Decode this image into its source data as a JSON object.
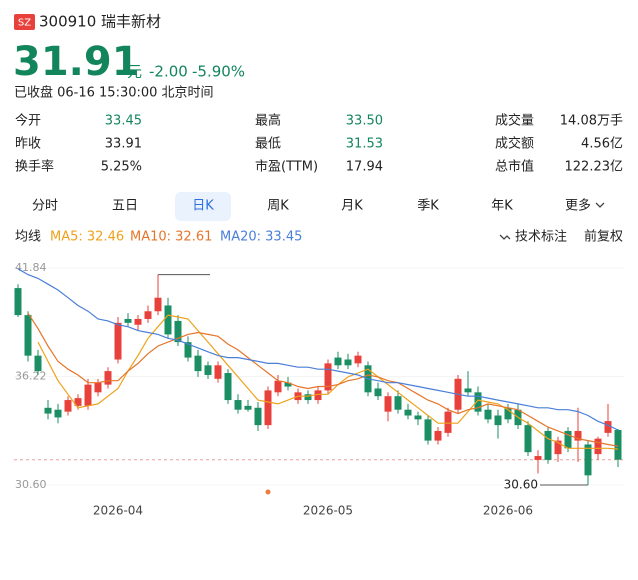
{
  "header": {
    "badge": "SZ",
    "name": "300910 瑞丰新材",
    "price": "31.91",
    "unit": "元",
    "change": "-2.00",
    "change_pct": "-5.90%",
    "status": "已收盘 06-16 15:30:00 北京时间"
  },
  "stats": [
    {
      "label": "今开",
      "value": "33.45",
      "color": "#13855c"
    },
    {
      "label": "最高",
      "value": "33.50",
      "color": "#13855c"
    },
    {
      "label": "成交量",
      "value": "14.08万手",
      "color": "#222222"
    },
    {
      "label": "昨收",
      "value": "33.91",
      "color": "#222222"
    },
    {
      "label": "最低",
      "value": "31.53",
      "color": "#13855c"
    },
    {
      "label": "成交额",
      "value": "4.56亿",
      "color": "#222222"
    },
    {
      "label": "换手率",
      "value": "5.25%",
      "color": "#222222"
    },
    {
      "label": "市盈(TTM)",
      "value": "17.94",
      "color": "#222222"
    },
    {
      "label": "总市值",
      "value": "122.23亿",
      "color": "#222222"
    }
  ],
  "tabs": [
    "分时",
    "五日",
    "日K",
    "周K",
    "月K",
    "季K",
    "年K",
    "更多"
  ],
  "selected_tab": 2,
  "toolbar": {
    "ma_label": "均线",
    "annotate": "技术标注",
    "adjust": "前复权"
  },
  "chart_data": {
    "type": "candlestick",
    "categories": [
      null,
      null,
      null,
      null,
      null,
      null,
      null,
      null,
      null,
      null,
      "2026-04",
      null,
      null,
      null,
      null,
      null,
      null,
      null,
      null,
      null,
      null,
      null,
      null,
      null,
      null,
      null,
      null,
      null,
      null,
      null,
      null,
      "2026-05",
      null,
      null,
      null,
      null,
      null,
      null,
      null,
      null,
      null,
      null,
      null,
      null,
      null,
      null,
      null,
      null,
      null,
      "2026-06",
      null,
      null,
      null,
      null,
      null,
      null,
      null,
      null,
      null,
      null,
      null
    ],
    "open": [
      40.8,
      39.4,
      37.3,
      34.6,
      34.5,
      34.4,
      34.7,
      34.7,
      35.4,
      35.8,
      37.1,
      39.2,
      38.9,
      39.2,
      39.6,
      39.9,
      39.1,
      38.0,
      37.3,
      36.8,
      36.1,
      36.4,
      35.0,
      34.7,
      34.6,
      33.7,
      35.4,
      35.9,
      35.0,
      35.3,
      35.0,
      35.5,
      37.2,
      37.1,
      36.9,
      36.8,
      35.6,
      34.4,
      35.2,
      34.5,
      34.2,
      34.0,
      32.9,
      33.3,
      34.5,
      35.6,
      35.4,
      34.5,
      34.2,
      34.6,
      34.5,
      33.7,
      31.9,
      33.4,
      32.2,
      33.4,
      32.9,
      32.7,
      32.2,
      33.3,
      33.45
    ],
    "high": [
      41.0,
      39.6,
      37.6,
      35.0,
      34.8,
      35.2,
      35.3,
      36.1,
      36.1,
      36.7,
      39.3,
      39.5,
      39.4,
      39.9,
      41.5,
      40.3,
      39.4,
      38.3,
      37.6,
      37.0,
      37.0,
      36.6,
      35.3,
      35.0,
      34.9,
      35.7,
      36.3,
      36.2,
      35.6,
      35.5,
      35.7,
      37.1,
      37.5,
      37.4,
      37.5,
      37.0,
      35.9,
      35.4,
      35.5,
      34.8,
      34.4,
      34.2,
      33.6,
      34.6,
      36.3,
      36.5,
      35.7,
      34.8,
      34.5,
      34.8,
      34.8,
      33.9,
      32.4,
      33.6,
      33.1,
      33.6,
      34.6,
      32.9,
      33.1,
      34.8,
      33.5
    ],
    "low": [
      39.3,
      37.0,
      36.3,
      34.0,
      33.8,
      34.2,
      34.5,
      34.5,
      35.2,
      35.6,
      36.9,
      38.8,
      38.6,
      39.0,
      39.4,
      38.2,
      37.8,
      37.0,
      36.2,
      36.1,
      35.9,
      34.8,
      34.3,
      34.4,
      33.4,
      33.5,
      35.2,
      35.5,
      34.8,
      34.8,
      34.8,
      35.3,
      36.6,
      36.6,
      36.7,
      35.2,
      35.0,
      33.9,
      34.3,
      34.0,
      33.7,
      32.7,
      32.7,
      33.1,
      34.3,
      35.2,
      34.2,
      33.8,
      33.0,
      33.8,
      33.5,
      32.1,
      31.2,
      31.7,
      31.8,
      32.3,
      31.8,
      30.6,
      31.9,
      33.1,
      31.53
    ],
    "close": [
      39.4,
      37.3,
      36.5,
      34.3,
      34.1,
      35.0,
      35.1,
      35.8,
      35.9,
      36.5,
      39.0,
      39.0,
      39.2,
      39.6,
      40.3,
      38.4,
      38.0,
      37.2,
      36.5,
      36.3,
      36.8,
      35.0,
      34.5,
      34.5,
      33.7,
      35.5,
      36.0,
      35.7,
      35.4,
      35.0,
      35.5,
      36.9,
      36.8,
      36.8,
      37.3,
      35.4,
      35.2,
      35.2,
      34.5,
      34.2,
      34.0,
      32.9,
      33.4,
      34.4,
      36.1,
      35.4,
      34.4,
      34.0,
      33.7,
      34.0,
      33.7,
      32.3,
      32.1,
      31.9,
      32.9,
      32.5,
      33.4,
      31.1,
      33.0,
      33.91,
      31.91
    ],
    "up_color": "#e8413b",
    "down_color": "#1b8f63",
    "series": [
      {
        "name": "MA5: 32.46",
        "color": "#eea21b",
        "values": [
          null,
          null,
          38.0,
          37.0,
          36.0,
          35.3,
          34.6,
          34.7,
          34.8,
          35.2,
          35.6,
          36.5,
          37.3,
          38.2,
          38.8,
          39.4,
          39.3,
          39.2,
          38.6,
          38.0,
          37.4,
          36.8,
          36.2,
          35.6,
          35.0,
          34.9,
          34.8,
          35.0,
          35.2,
          35.2,
          35.3,
          35.3,
          35.8,
          36.2,
          36.4,
          36.6,
          36.2,
          35.8,
          35.4,
          35.0,
          34.6,
          34.2,
          33.8,
          33.8,
          33.8,
          34.4,
          35.0,
          34.9,
          34.8,
          34.5,
          34.1,
          33.8,
          33.4,
          33.0,
          32.8,
          32.5,
          32.5,
          32.5,
          32.5,
          32.5,
          32.46
        ]
      },
      {
        "name": "MA10: 32.61",
        "color": "#e5752a",
        "values": [
          null,
          39.5,
          38.7,
          37.8,
          37.0,
          36.6,
          36.3,
          35.9,
          35.9,
          36.0,
          36.0,
          36.5,
          36.9,
          37.4,
          37.8,
          38.0,
          38.2,
          38.4,
          38.5,
          38.4,
          38.3,
          37.9,
          37.6,
          37.2,
          36.8,
          36.4,
          36.0,
          35.9,
          35.7,
          35.6,
          35.7,
          35.7,
          35.8,
          36.0,
          36.1,
          36.3,
          36.2,
          36.0,
          35.9,
          35.6,
          35.3,
          35.0,
          34.8,
          34.5,
          34.3,
          34.5,
          34.6,
          34.8,
          34.7,
          34.6,
          34.5,
          34.2,
          33.9,
          33.6,
          33.4,
          33.2,
          33.0,
          32.9,
          32.8,
          32.7,
          32.61
        ]
      },
      {
        "name": "MA20: 33.45",
        "color": "#4a7fd8",
        "values": [
          41.8,
          41.5,
          41.3,
          41.0,
          40.7,
          40.3,
          39.9,
          39.6,
          39.2,
          39.1,
          38.9,
          38.8,
          38.6,
          38.5,
          38.4,
          38.2,
          38.1,
          37.9,
          37.7,
          37.5,
          37.3,
          37.2,
          37.2,
          37.1,
          37.0,
          36.9,
          36.9,
          36.8,
          36.7,
          36.7,
          36.6,
          36.6,
          36.5,
          36.4,
          36.3,
          36.1,
          36.0,
          35.9,
          35.9,
          35.8,
          35.7,
          35.6,
          35.5,
          35.4,
          35.3,
          35.2,
          35.2,
          35.1,
          35.0,
          34.9,
          34.8,
          34.7,
          34.6,
          34.6,
          34.5,
          34.5,
          34.4,
          34.2,
          33.9,
          33.7,
          33.45
        ]
      }
    ],
    "ylim": [
      30.6,
      41.84
    ],
    "yticks": [
      41.84,
      36.22,
      {
        "value": 30.6,
        "label": "30.60"
      }
    ],
    "low_label": "30.60"
  }
}
